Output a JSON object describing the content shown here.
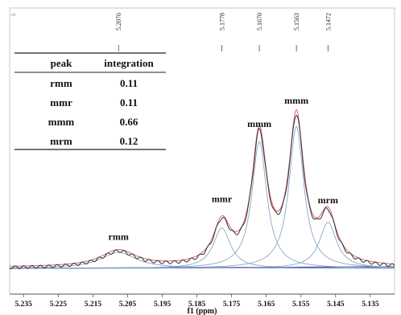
{
  "chart_data": {
    "type": "line",
    "corner_label": "1H",
    "xlabel": "f1 (ppm)",
    "xlim": [
      5.239,
      5.128
    ],
    "x_reversed": true,
    "x_ticks": [
      5.235,
      5.225,
      5.215,
      5.205,
      5.195,
      5.185,
      5.175,
      5.165,
      5.155,
      5.145,
      5.135
    ],
    "x_tick_labels": [
      "5.235",
      "5.225",
      "5.215",
      "5.205",
      "5.195",
      "5.185",
      "5.175",
      "5.165",
      "5.155",
      "5.145",
      "5.135"
    ],
    "ylim": [
      0,
      1.0
    ],
    "grid": false,
    "peak_markers": [
      {
        "x": 5.2076,
        "label": "5.2076"
      },
      {
        "x": 5.1778,
        "label": "5.1778"
      },
      {
        "x": 5.167,
        "label": "5.1670"
      },
      {
        "x": 5.1563,
        "label": "5.1563"
      },
      {
        "x": 5.1472,
        "label": "5.1472"
      }
    ],
    "peak_annotations": [
      {
        "x": 5.2076,
        "y": 0.135,
        "label": "rmm"
      },
      {
        "x": 5.1778,
        "y": 0.335,
        "label": "mmr"
      },
      {
        "x": 5.167,
        "y": 0.735,
        "label": "mmm"
      },
      {
        "x": 5.1563,
        "y": 0.86,
        "label": "mmm"
      },
      {
        "x": 5.1472,
        "y": 0.33,
        "label": "mrm"
      }
    ],
    "deconvolution_peaks": [
      {
        "center": 5.2076,
        "height": 0.085,
        "width": 0.0062
      },
      {
        "center": 5.1778,
        "height": 0.215,
        "width": 0.003
      },
      {
        "center": 5.167,
        "height": 0.675,
        "width": 0.0026
      },
      {
        "center": 5.1563,
        "height": 0.755,
        "width": 0.0026
      },
      {
        "center": 5.1472,
        "height": 0.245,
        "width": 0.003
      }
    ],
    "integration_table": {
      "headers": [
        "peak",
        "integration"
      ],
      "rows": [
        [
          "rmm",
          "0.11"
        ],
        [
          "mmr",
          "0.11"
        ],
        [
          "mmm",
          "0.66"
        ],
        [
          "mrm",
          "0.12"
        ]
      ]
    },
    "colors": {
      "experimental": "#333333",
      "fitted": "#e06070",
      "deconvolution": "#7f9bc2",
      "baseline": "#3a4fa0",
      "annotation": "#111111"
    }
  }
}
